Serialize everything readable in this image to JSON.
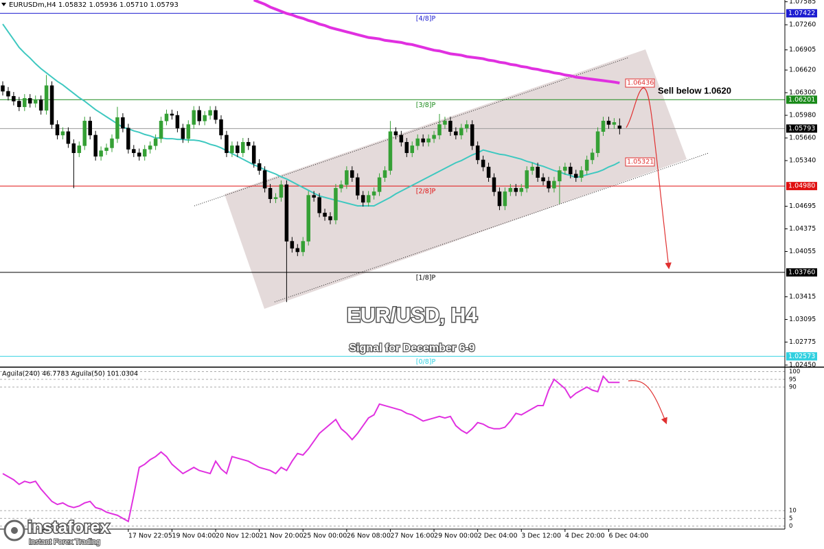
{
  "chart_data": [
    {
      "type": "candlestick",
      "header": "EURUSDm,H4 1.05832 1.05936 1.05710 1.05793",
      "title": "EUR/USD, H4",
      "subtitle": "Signal for December 6-9",
      "annotation": "Sell below 1.0620",
      "up_color": "#35a035",
      "down_color": "#000000",
      "categories": [
        null,
        null,
        null,
        null,
        null,
        null,
        null,
        null,
        null,
        null,
        null,
        null,
        null,
        null,
        null,
        null,
        null,
        null,
        null,
        null,
        null,
        null,
        null,
        "17 Nov 22:05",
        null,
        null,
        null,
        null,
        null,
        null,
        null,
        "19 Nov 04:00",
        null,
        null,
        null,
        null,
        null,
        null,
        null,
        "20 Nov 12:00",
        null,
        null,
        null,
        null,
        null,
        null,
        null,
        "21 Nov 20:00",
        null,
        null,
        null,
        null,
        null,
        null,
        null,
        "25 Nov 00:00",
        null,
        null,
        null,
        null,
        null,
        null,
        null,
        "26 Nov 08:00",
        null,
        null,
        null,
        null,
        null,
        null,
        null,
        "27 Nov 16:00",
        null,
        null,
        null,
        null,
        null,
        null,
        null,
        "29 Nov 00:00",
        null,
        null,
        null,
        null,
        null,
        null,
        null,
        "2 Dec 04:00",
        null,
        null,
        null,
        null,
        null,
        null,
        null,
        "3 Dec 12:00",
        null,
        null,
        null,
        null,
        null,
        null,
        null,
        "4 Dec 20:00",
        null,
        null,
        null,
        null,
        null,
        null,
        null,
        "6 Dec 04:00",
        null,
        null
      ],
      "open": [
        1.064,
        1.0632,
        1.0625,
        1.0618,
        1.061,
        1.0622,
        1.0615,
        1.062,
        1.0605,
        1.064,
        1.0585,
        1.057,
        1.0575,
        1.0558,
        1.0545,
        1.0555,
        1.059,
        1.057,
        1.054,
        1.0548,
        1.0552,
        1.0565,
        1.0595,
        1.058,
        1.055,
        1.0545,
        1.054,
        1.055,
        1.0555,
        1.0565,
        1.059,
        1.06,
        1.0598,
        1.058,
        1.0565,
        1.0585,
        1.0605,
        1.059,
        1.0598,
        1.0605,
        1.0592,
        1.057,
        1.0545,
        1.0555,
        1.0545,
        1.056,
        1.0555,
        1.053,
        1.052,
        1.0495,
        1.048,
        1.0482,
        1.05,
        1.042,
        1.041,
        1.0405,
        1.042,
        1.0485,
        1.0482,
        1.046,
        1.0455,
        1.045,
        1.0495,
        1.05,
        1.052,
        1.051,
        1.0485,
        1.0475,
        1.0485,
        1.049,
        1.051,
        1.052,
        1.0575,
        1.057,
        1.056,
        1.0545,
        1.0555,
        1.0565,
        1.056,
        1.0565,
        1.057,
        1.0585,
        1.059,
        1.0575,
        1.057,
        1.058,
        1.0585,
        1.0555,
        1.0535,
        1.0525,
        1.051,
        1.049,
        1.047,
        1.049,
        1.0495,
        1.049,
        1.0495,
        1.052,
        1.0525,
        1.051,
        1.0505,
        1.0495,
        1.0505,
        1.052,
        1.0525,
        1.0515,
        1.051,
        1.052,
        1.0535,
        1.0545,
        1.0575,
        1.059,
        1.0585,
        1.05832
      ],
      "high": [
        1.0646,
        1.0638,
        1.0631,
        1.0624,
        1.0628,
        1.0628,
        1.0626,
        1.0626,
        1.0655,
        1.0646,
        1.0591,
        1.0581,
        1.0581,
        1.0564,
        1.0561,
        1.0596,
        1.0596,
        1.0576,
        1.0554,
        1.0558,
        1.0571,
        1.061,
        1.0601,
        1.0586,
        1.0556,
        1.0551,
        1.0556,
        1.0561,
        1.0571,
        1.0596,
        1.0606,
        1.0606,
        1.0604,
        1.0586,
        1.0591,
        1.0611,
        1.0611,
        1.0604,
        1.0611,
        1.0611,
        1.0598,
        1.0576,
        1.0561,
        1.0561,
        1.0566,
        1.0566,
        1.0561,
        1.0536,
        1.0526,
        1.0501,
        1.0488,
        1.0506,
        1.0506,
        1.0426,
        1.0416,
        1.0426,
        1.0491,
        1.0491,
        1.0488,
        1.0466,
        1.0461,
        1.0501,
        1.0506,
        1.0526,
        1.0526,
        1.0516,
        1.0491,
        1.0491,
        1.0496,
        1.0516,
        1.0526,
        1.059,
        1.0581,
        1.0576,
        1.0566,
        1.0561,
        1.0571,
        1.0571,
        1.0571,
        1.0576,
        1.06,
        1.0596,
        1.0596,
        1.0581,
        1.0586,
        1.0591,
        1.0591,
        1.0561,
        1.0541,
        1.0531,
        1.0516,
        1.0496,
        1.0496,
        1.0501,
        1.0501,
        1.0501,
        1.0526,
        1.0531,
        1.0531,
        1.0516,
        1.0511,
        1.0511,
        1.0526,
        1.0531,
        1.0531,
        1.0521,
        1.0526,
        1.0541,
        1.0551,
        1.0581,
        1.0596,
        1.0596,
        1.0594,
        1.05936
      ],
      "low": [
        1.0626,
        1.0619,
        1.0612,
        1.0604,
        1.0604,
        1.0609,
        1.0609,
        1.0599,
        1.0599,
        1.0579,
        1.0564,
        1.0564,
        1.0552,
        1.0495,
        1.0539,
        1.0549,
        1.0564,
        1.0534,
        1.0534,
        1.0542,
        1.0546,
        1.0559,
        1.0574,
        1.0544,
        1.0539,
        1.0534,
        1.0534,
        1.0544,
        1.0549,
        1.0559,
        1.0584,
        1.0592,
        1.0574,
        1.0559,
        1.0559,
        1.0579,
        1.0584,
        1.0584,
        1.0592,
        1.0586,
        1.0564,
        1.0539,
        1.0539,
        1.0539,
        1.0539,
        1.0549,
        1.0524,
        1.0514,
        1.0489,
        1.0474,
        1.0474,
        1.0476,
        1.0334,
        1.0404,
        1.0399,
        1.0399,
        1.0414,
        1.0476,
        1.0454,
        1.0449,
        1.0444,
        1.0444,
        1.0489,
        1.0494,
        1.0504,
        1.0479,
        1.0469,
        1.0469,
        1.0479,
        1.0484,
        1.0504,
        1.0514,
        1.0564,
        1.0554,
        1.0539,
        1.0539,
        1.0549,
        1.0554,
        1.0554,
        1.0559,
        1.0564,
        1.0579,
        1.0569,
        1.0564,
        1.0564,
        1.0574,
        1.0549,
        1.0529,
        1.0519,
        1.0504,
        1.0484,
        1.0464,
        1.0464,
        1.0484,
        1.0484,
        1.0484,
        1.0489,
        1.0514,
        1.0504,
        1.0499,
        1.0489,
        1.0489,
        1.0473,
        1.0514,
        1.0509,
        1.0504,
        1.0504,
        1.0514,
        1.0529,
        1.0539,
        1.0569,
        1.0579,
        1.0579,
        1.0571
      ],
      "close": [
        1.0632,
        1.0625,
        1.0618,
        1.061,
        1.0622,
        1.0615,
        1.062,
        1.0605,
        1.064,
        1.0585,
        1.057,
        1.0575,
        1.0558,
        1.0545,
        1.0555,
        1.059,
        1.057,
        1.054,
        1.0548,
        1.0552,
        1.0565,
        1.0595,
        1.058,
        1.055,
        1.0545,
        1.054,
        1.055,
        1.0555,
        1.0565,
        1.059,
        1.06,
        1.0598,
        1.058,
        1.0565,
        1.0585,
        1.0605,
        1.059,
        1.0598,
        1.0605,
        1.0592,
        1.057,
        1.0545,
        1.0555,
        1.0545,
        1.056,
        1.0555,
        1.053,
        1.052,
        1.0495,
        1.048,
        1.0482,
        1.05,
        1.042,
        1.041,
        1.0405,
        1.042,
        1.0485,
        1.0482,
        1.046,
        1.0455,
        1.045,
        1.0495,
        1.05,
        1.052,
        1.051,
        1.0485,
        1.0475,
        1.0485,
        1.049,
        1.051,
        1.052,
        1.0575,
        1.057,
        1.056,
        1.0545,
        1.0555,
        1.0565,
        1.056,
        1.0565,
        1.057,
        1.0585,
        1.059,
        1.0575,
        1.057,
        1.058,
        1.0585,
        1.0555,
        1.0535,
        1.0525,
        1.051,
        1.049,
        1.047,
        1.049,
        1.0495,
        1.049,
        1.0495,
        1.052,
        1.0525,
        1.051,
        1.0505,
        1.0495,
        1.0505,
        1.052,
        1.0525,
        1.0515,
        1.051,
        1.052,
        1.0535,
        1.0545,
        1.0575,
        1.059,
        1.0585,
        1.0588,
        1.05793
      ],
      "series": [
        {
          "color": "#3ec8c0",
          "values": [
            1.0727,
            1.0716,
            1.0705,
            1.0694,
            1.0686,
            1.0679,
            1.0671,
            1.0664,
            1.0658,
            1.0652,
            1.0646,
            1.0641,
            1.0635,
            1.0629,
            1.0623,
            1.0618,
            1.0612,
            1.0606,
            1.0601,
            1.0596,
            1.0591,
            1.0586,
            1.0581,
            1.0579,
            1.0576,
            1.0574,
            1.0571,
            1.0569,
            1.0566,
            1.0566,
            1.0565,
            1.0565,
            1.0564,
            1.0564,
            1.0563,
            1.0563,
            1.0562,
            1.056,
            1.0557,
            1.0555,
            1.0552,
            1.0548,
            1.0544,
            1.054,
            1.0536,
            1.0532,
            1.0528,
            1.0525,
            1.0521,
            1.0518,
            1.0515,
            1.0511,
            1.0508,
            1.0504,
            1.05,
            1.0496,
            1.0492,
            1.0488,
            1.0484,
            1.0482,
            1.048,
            1.0478,
            1.0476,
            1.0474,
            1.0472,
            1.047,
            1.047,
            1.047,
            1.047,
            1.0474,
            1.0478,
            1.0482,
            1.0487,
            1.0491,
            1.0495,
            1.0499,
            1.0503,
            1.0507,
            1.0511,
            1.0515,
            1.0519,
            1.0523,
            1.0527,
            1.0531,
            1.0534,
            1.0538,
            1.0542,
            1.0545,
            1.0549,
            1.0547,
            1.0545,
            1.0543,
            1.0542,
            1.054,
            1.0538,
            1.0536,
            1.0533,
            1.0531,
            1.0528,
            1.0526,
            1.0523,
            1.052,
            1.0518,
            1.0515,
            1.0513,
            1.051,
            1.0512,
            1.0514,
            1.0516,
            1.0518,
            1.0521,
            1.0525,
            1.0528,
            1.05321
          ]
        },
        {
          "color": "#e030e0",
          "values": [
            null,
            null,
            null,
            null,
            null,
            null,
            null,
            null,
            null,
            null,
            null,
            null,
            null,
            null,
            null,
            null,
            null,
            null,
            null,
            null,
            null,
            null,
            null,
            null,
            null,
            null,
            null,
            null,
            null,
            null,
            null,
            null,
            null,
            null,
            null,
            null,
            null,
            null,
            null,
            null,
            null,
            null,
            null,
            null,
            null,
            null,
            1.0761,
            1.0758,
            1.0755,
            1.0751,
            1.0748,
            1.0745,
            1.0742,
            1.074,
            1.0737,
            1.0735,
            1.0732,
            1.073,
            1.0727,
            1.0725,
            1.0722,
            1.072,
            1.0718,
            1.0716,
            1.0714,
            1.0712,
            1.071,
            1.0708,
            1.0707,
            1.0706,
            1.0704,
            1.0703,
            1.0702,
            1.0701,
            1.0699,
            1.0698,
            1.0696,
            1.0694,
            1.0692,
            1.069,
            1.0689,
            1.0687,
            1.0685,
            1.0684,
            1.0683,
            1.0681,
            1.068,
            1.0679,
            1.0678,
            1.0676,
            1.0675,
            1.0673,
            1.0672,
            1.067,
            1.0669,
            1.0667,
            1.0666,
            1.0664,
            1.0663,
            1.0661,
            1.066,
            1.0658,
            1.0657,
            1.0655,
            1.0654,
            1.0652,
            1.0651,
            1.065,
            1.0649,
            1.0648,
            1.0647,
            1.0646,
            1.0645,
            1.06436
          ]
        }
      ],
      "levels": [
        {
          "label": "[4/8]P",
          "value": 1.07422,
          "color": "#1c1cd0"
        },
        {
          "label": "[3/8]P",
          "value": 1.06201,
          "color": "#1a8a1a"
        },
        {
          "label": "[2/8]P",
          "value": 1.0498,
          "value_label": "1.04980",
          "color": "#e01010"
        },
        {
          "label": "[1/8]P",
          "value": 1.0376,
          "value_label": "1.03760",
          "color": "#000000"
        },
        {
          "label": "[0/8]P",
          "value": 1.02573,
          "color": "#30d0e0"
        }
      ],
      "ylim": [
        1.0244,
        1.0761
      ],
      "yticks": [
        1.07585,
        {
          "value": 1.0726,
          "label": "1.07260"
        },
        1.06905,
        {
          "value": 1.0662,
          "label": "1.06620"
        },
        {
          "value": 1.063,
          "label": "1.06300"
        },
        {
          "value": 1.0598,
          "label": "1.05980"
        },
        {
          "value": 1.0566,
          "label": "1.05660"
        },
        {
          "value": 1.0534,
          "label": "1.05340"
        },
        1.04695,
        1.04375,
        1.04055,
        1.03415,
        1.03095,
        1.02775,
        {
          "value": 1.0245,
          "label": "1.02450"
        }
      ]
    },
    {
      "type": "line",
      "header": "Aguila(240) 46.7783  Aguila(50) 101.0304",
      "series": [
        {
          "color": "#e030e0",
          "values": [
            34,
            32,
            30,
            27,
            29,
            28,
            29,
            24,
            20,
            16,
            14,
            15,
            13,
            12,
            13,
            15,
            16,
            12,
            11,
            9,
            8,
            7,
            5,
            3,
            20,
            38,
            40,
            43,
            45,
            48,
            45,
            40,
            37,
            34,
            36,
            38,
            36,
            35,
            34,
            42,
            37,
            34,
            45,
            44,
            43,
            42,
            40,
            38,
            37,
            36,
            34,
            38,
            36,
            42,
            47,
            46,
            50,
            55,
            60,
            63,
            66,
            69,
            63,
            60,
            56,
            60,
            65,
            70,
            72,
            79,
            78,
            77,
            76,
            75,
            73,
            72,
            70,
            68,
            69,
            70,
            71,
            70,
            71,
            65,
            62,
            60,
            63,
            67,
            66,
            64,
            63,
            63,
            64,
            68,
            73,
            72,
            74,
            76,
            78,
            78,
            88,
            95,
            92,
            89,
            83,
            86,
            88,
            90,
            88,
            87,
            97,
            93,
            93,
            93
          ]
        }
      ],
      "ylim": [
        -1.5,
        102
      ],
      "yticks": [
        100,
        95,
        90,
        10,
        5,
        0
      ],
      "grid": true
    }
  ],
  "logo": {
    "name": "instaforex",
    "tagline": "Instant Forex Trading"
  }
}
